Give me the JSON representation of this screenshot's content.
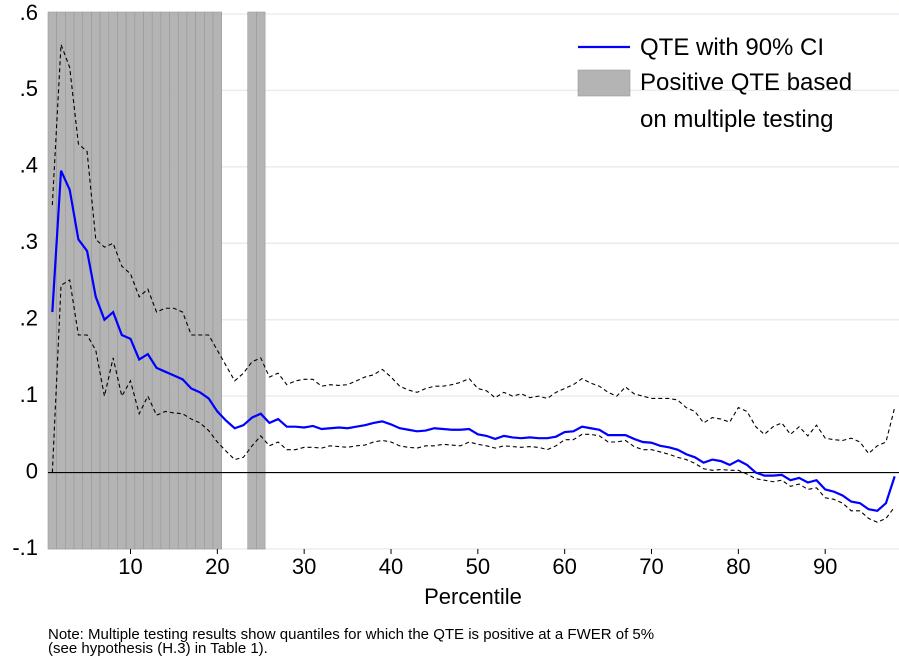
{
  "chart_data": {
    "type": "line",
    "x_label": "Percentile",
    "note": [
      "Note: Multiple testing results show quantiles for which the QTE is positive at a FWER of 5%",
      "(see hypothesis (H.3) in Table 1)."
    ],
    "x": [
      1,
      2,
      3,
      4,
      5,
      6,
      7,
      8,
      9,
      10,
      11,
      12,
      13,
      14,
      15,
      16,
      17,
      18,
      19,
      20,
      21,
      22,
      23,
      24,
      25,
      26,
      27,
      28,
      29,
      30,
      31,
      32,
      33,
      34,
      35,
      36,
      37,
      38,
      39,
      40,
      41,
      42,
      43,
      44,
      45,
      46,
      47,
      48,
      49,
      50,
      51,
      52,
      53,
      54,
      55,
      56,
      57,
      58,
      59,
      60,
      61,
      62,
      63,
      64,
      65,
      66,
      67,
      68,
      69,
      70,
      71,
      72,
      73,
      74,
      75,
      76,
      77,
      78,
      79,
      80,
      81,
      82,
      83,
      84,
      85,
      86,
      87,
      88,
      89,
      90,
      91,
      92,
      93,
      94,
      95,
      96,
      97,
      98
    ],
    "series": [
      {
        "name": "QTE with 90% CI",
        "color": "#0000ff",
        "style": "solid",
        "values": [
          0.21,
          0.395,
          0.37,
          0.305,
          0.29,
          0.23,
          0.2,
          0.21,
          0.18,
          0.175,
          0.148,
          0.155,
          0.137,
          0.132,
          0.127,
          0.122,
          0.11,
          0.105,
          0.097,
          0.08,
          0.068,
          0.058,
          0.062,
          0.072,
          0.077,
          0.065,
          0.07,
          0.06,
          0.06,
          0.059,
          0.061,
          0.057,
          0.058,
          0.059,
          0.058,
          0.06,
          0.062,
          0.065,
          0.067,
          0.063,
          0.058,
          0.056,
          0.054,
          0.055,
          0.058,
          0.057,
          0.056,
          0.056,
          0.057,
          0.05,
          0.048,
          0.044,
          0.048,
          0.046,
          0.045,
          0.046,
          0.045,
          0.045,
          0.047,
          0.053,
          0.054,
          0.06,
          0.058,
          0.056,
          0.049,
          0.049,
          0.049,
          0.044,
          0.04,
          0.039,
          0.035,
          0.033,
          0.03,
          0.024,
          0.02,
          0.013,
          0.017,
          0.015,
          0.01,
          0.016,
          0.01,
          0,
          -0.004,
          -0.004,
          -0.003,
          -0.01,
          -0.007,
          -0.013,
          -0.01,
          -0.022,
          -0.025,
          -0.03,
          -0.038,
          -0.04,
          -0.048,
          -0.05,
          -0.04,
          -0.005
        ]
      },
      {
        "color": "#000000",
        "style": "dashed",
        "values": [
          0.35,
          0.56,
          0.53,
          0.43,
          0.42,
          0.305,
          0.295,
          0.3,
          0.27,
          0.26,
          0.23,
          0.24,
          0.21,
          0.215,
          0.215,
          0.21,
          0.18,
          0.18,
          0.18,
          0.16,
          0.14,
          0.12,
          0.13,
          0.145,
          0.15,
          0.125,
          0.13,
          0.115,
          0.12,
          0.122,
          0.122,
          0.113,
          0.115,
          0.114,
          0.115,
          0.12,
          0.125,
          0.128,
          0.135,
          0.125,
          0.113,
          0.108,
          0.105,
          0.11,
          0.113,
          0.113,
          0.115,
          0.118,
          0.123,
          0.11,
          0.107,
          0.098,
          0.105,
          0.1,
          0.103,
          0.098,
          0.1,
          0.097,
          0.105,
          0.11,
          0.115,
          0.123,
          0.117,
          0.113,
          0.105,
          0.1,
          0.112,
          0.103,
          0.1,
          0.097,
          0.097,
          0.097,
          0.095,
          0.085,
          0.08,
          0.065,
          0.072,
          0.07,
          0.066,
          0.085,
          0.08,
          0.06,
          0.05,
          0.06,
          0.065,
          0.05,
          0.06,
          0.048,
          0.062,
          0.045,
          0.043,
          0.042,
          0.045,
          0.04,
          0.025,
          0.035,
          0.04,
          0.085
        ]
      },
      {
        "color": "#000000",
        "style": "dashed",
        "values": [
          0,
          0.245,
          0.252,
          0.18,
          0.18,
          0.16,
          0.1,
          0.15,
          0.1,
          0.12,
          0.077,
          0.1,
          0.075,
          0.08,
          0.078,
          0.077,
          0.07,
          0.065,
          0.055,
          0.04,
          0.028,
          0.017,
          0.02,
          0.035,
          0.048,
          0.035,
          0.04,
          0.03,
          0.03,
          0.033,
          0.033,
          0.032,
          0.035,
          0.034,
          0.033,
          0.035,
          0.036,
          0.04,
          0.042,
          0.04,
          0.035,
          0.033,
          0.032,
          0.035,
          0.035,
          0.037,
          0.036,
          0.035,
          0.04,
          0.037,
          0.035,
          0.032,
          0.035,
          0.034,
          0.033,
          0.034,
          0.033,
          0.03,
          0.035,
          0.043,
          0.043,
          0.05,
          0.05,
          0.048,
          0.04,
          0.04,
          0.042,
          0.034,
          0.03,
          0.03,
          0.027,
          0.024,
          0.02,
          0.017,
          0.012,
          0.005,
          0.003,
          0.004,
          0.003,
          0.003,
          -0.002,
          -0.008,
          -0.01,
          -0.012,
          -0.01,
          -0.018,
          -0.015,
          -0.022,
          -0.02,
          -0.033,
          -0.035,
          -0.04,
          -0.05,
          -0.05,
          -0.06,
          -0.065,
          -0.06,
          -0.045
        ]
      }
    ],
    "shaded": {
      "name": "Positive QTE based on multiple testing",
      "color": "#b4b4b4",
      "x": [
        1,
        2,
        3,
        4,
        5,
        6,
        7,
        8,
        9,
        10,
        11,
        12,
        13,
        14,
        15,
        16,
        17,
        18,
        19,
        20,
        24,
        25
      ]
    },
    "xlim": [
      0.5,
      98.5
    ],
    "xticks": [
      10,
      20,
      30,
      40,
      50,
      60,
      70,
      80,
      90
    ],
    "ylim": [
      -0.1,
      0.6
    ],
    "yticks": [
      {
        "value": -0.1,
        "label": "-.1"
      },
      0,
      {
        "value": 0.1,
        "label": ".1"
      },
      {
        "value": 0.2,
        "label": ".2"
      },
      {
        "value": 0.3,
        "label": ".3"
      },
      {
        "value": 0.4,
        "label": ".4"
      },
      {
        "value": 0.5,
        "label": ".5"
      },
      {
        "value": 0.6,
        "label": ".6"
      }
    ],
    "grid": true,
    "zero_line": true,
    "legend": "top-right"
  }
}
